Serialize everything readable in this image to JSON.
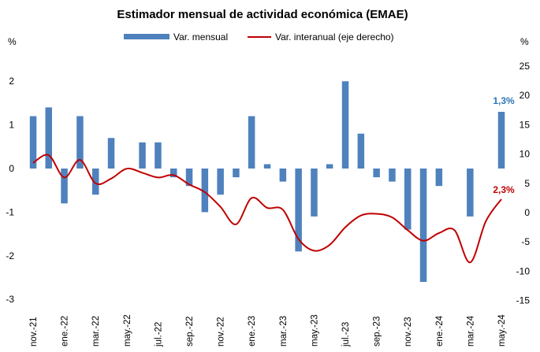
{
  "chart_data": {
    "type": "bar+line",
    "title": "Estimador mensual de actividad económica (EMAE)",
    "y_left_unit": "%",
    "y_right_unit": "%",
    "y_left_ticks": [
      "2",
      "1",
      "0",
      "-1",
      "-2",
      "-3"
    ],
    "y_left_range": [
      -3,
      2.7
    ],
    "y_right_ticks": [
      "25",
      "20",
      "15",
      "10",
      "5",
      "0",
      "-5",
      "-10",
      "-15"
    ],
    "y_right_range": [
      -15,
      25
    ],
    "x_tick_labels": [
      "nov.-21",
      "ene.-22",
      "mar.-22",
      "may.-22",
      "jul.-22",
      "sep.-22",
      "nov.-22",
      "ene.-23",
      "mar.-23",
      "may.-23",
      "jul.-23",
      "sep.-23",
      "nov.-23",
      "ene.-24",
      "mar.-24",
      "may.-24"
    ],
    "months": [
      "nov.-21",
      "dic.-21",
      "ene.-22",
      "feb.-22",
      "mar.-22",
      "abr.-22",
      "may.-22",
      "jun.-22",
      "jul.-22",
      "ago.-22",
      "sep.-22",
      "oct.-22",
      "nov.-22",
      "dic.-22",
      "ene.-23",
      "feb.-23",
      "mar.-23",
      "abr.-23",
      "may.-23",
      "jun.-23",
      "jul.-23",
      "ago.-23",
      "sep.-23",
      "oct.-23",
      "nov.-23",
      "dic.-23",
      "ene.-24",
      "feb.-24",
      "mar.-24",
      "abr.-24",
      "may.-24"
    ],
    "series": [
      {
        "name": "Var. mensual",
        "kind": "bar",
        "axis": "left",
        "color": "#4F81BD",
        "values": [
          1.2,
          1.4,
          -0.8,
          1.2,
          -0.6,
          0.7,
          0.0,
          0.6,
          0.6,
          -0.2,
          -0.4,
          -1.0,
          -0.6,
          -0.2,
          1.2,
          0.1,
          -0.3,
          -1.9,
          -1.1,
          0.1,
          2.0,
          0.8,
          -0.2,
          -0.3,
          -1.4,
          -2.6,
          -0.4,
          0.0,
          -1.1,
          0.0,
          1.3
        ]
      },
      {
        "name": "Var. interanual (eje derecho)",
        "kind": "line",
        "axis": "right",
        "color": "#C00000",
        "values": [
          8.5,
          9.8,
          6.0,
          9.0,
          5.0,
          5.8,
          7.5,
          6.8,
          6.0,
          6.4,
          4.8,
          3.5,
          1.0,
          -2.0,
          2.5,
          0.8,
          0.5,
          -4.5,
          -6.5,
          -5.5,
          -2.5,
          -0.5,
          -0.2,
          -0.8,
          -3.0,
          -4.8,
          -3.5,
          -3.0,
          -8.5,
          -1.5,
          2.3
        ]
      }
    ],
    "annotations": [
      {
        "text": "1,3%",
        "series": "Var. mensual",
        "month": "may.-24",
        "color": "#2E75B6"
      },
      {
        "text": "2,3%",
        "series": "Var. interanual (eje derecho)",
        "month": "may.-24",
        "color": "#C00000"
      }
    ],
    "legend": {
      "position": "top",
      "entries": [
        "Var. mensual",
        "Var. interanual (eje derecho)"
      ]
    },
    "grid": false
  }
}
